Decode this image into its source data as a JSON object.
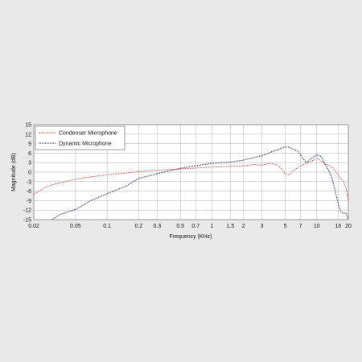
{
  "chart_data": {
    "type": "line",
    "title": "",
    "xlabel": "Frequency (KHz)",
    "ylabel": "Magnitude (dB)",
    "xscale": "log",
    "xlim": [
      0.02,
      20
    ],
    "ylim": [
      -15,
      15
    ],
    "grid": true,
    "legend_position": "top-left",
    "x_ticks": [
      {
        "v": 0.02,
        "label": "0.02"
      },
      {
        "v": 0.05,
        "label": "0.05"
      },
      {
        "v": 0.1,
        "label": "0.1"
      },
      {
        "v": 0.2,
        "label": "0.2"
      },
      {
        "v": 0.3,
        "label": "0.3"
      },
      {
        "v": 0.5,
        "label": "0.5"
      },
      {
        "v": 0.7,
        "label": "0.7"
      },
      {
        "v": 1,
        "label": "1"
      },
      {
        "v": 1.5,
        "label": "1.5"
      },
      {
        "v": 2,
        "label": "2"
      },
      {
        "v": 3,
        "label": "3"
      },
      {
        "v": 5,
        "label": "5"
      },
      {
        "v": 7,
        "label": "7"
      },
      {
        "v": 10,
        "label": "10"
      },
      {
        "v": 16,
        "label": "16"
      },
      {
        "v": 20,
        "label": "20"
      }
    ],
    "y_ticks": [
      15,
      12,
      9,
      6,
      3,
      0,
      -3,
      -6,
      -9,
      -12,
      -15
    ],
    "series": [
      {
        "name": "Condenser Microphone",
        "color": "#d9534f",
        "style": "dashed",
        "points": [
          [
            0.02,
            -7
          ],
          [
            0.025,
            -5
          ],
          [
            0.03,
            -4
          ],
          [
            0.04,
            -3
          ],
          [
            0.05,
            -2.2
          ],
          [
            0.07,
            -1.5
          ],
          [
            0.1,
            -0.8
          ],
          [
            0.15,
            -0.3
          ],
          [
            0.2,
            0.2
          ],
          [
            0.3,
            0.6
          ],
          [
            0.5,
            1.0
          ],
          [
            0.7,
            1.3
          ],
          [
            1.0,
            1.6
          ],
          [
            1.5,
            1.8
          ],
          [
            2.0,
            2.0
          ],
          [
            2.5,
            2.4
          ],
          [
            3.0,
            2.2
          ],
          [
            3.5,
            2.8
          ],
          [
            4.0,
            2.5
          ],
          [
            4.5,
            1.5
          ],
          [
            5.0,
            -0.5
          ],
          [
            5.5,
            -0.8
          ],
          [
            6.0,
            0.5
          ],
          [
            7.0,
            2.0
          ],
          [
            8.0,
            2.8
          ],
          [
            9.0,
            3.5
          ],
          [
            10.0,
            4.5
          ],
          [
            11.0,
            3.5
          ],
          [
            12.0,
            2.5
          ],
          [
            13.0,
            2.2
          ],
          [
            14.0,
            1.5
          ],
          [
            15.0,
            0.5
          ],
          [
            16.0,
            -1.0
          ],
          [
            17.0,
            -2.0
          ],
          [
            18.0,
            -3.0
          ],
          [
            19.0,
            -5.0
          ],
          [
            20.0,
            -9.0
          ]
        ]
      },
      {
        "name": "Dynamic Microphone",
        "color": "#1e2a5a",
        "style": "dotted",
        "points": [
          [
            0.03,
            -15
          ],
          [
            0.035,
            -13.5
          ],
          [
            0.04,
            -12.8
          ],
          [
            0.05,
            -11.8
          ],
          [
            0.07,
            -9
          ],
          [
            0.1,
            -6.8
          ],
          [
            0.15,
            -4.5
          ],
          [
            0.2,
            -2
          ],
          [
            0.3,
            -0.5
          ],
          [
            0.5,
            1.2
          ],
          [
            0.7,
            2.0
          ],
          [
            1.0,
            2.8
          ],
          [
            1.5,
            3.2
          ],
          [
            2.0,
            3.8
          ],
          [
            3.0,
            5.2
          ],
          [
            4.0,
            6.8
          ],
          [
            5.0,
            8.0
          ],
          [
            5.5,
            7.8
          ],
          [
            6.0,
            7.2
          ],
          [
            6.5,
            6.8
          ],
          [
            7.0,
            5.5
          ],
          [
            7.5,
            4.0
          ],
          [
            8.0,
            3.0
          ],
          [
            9.0,
            4.5
          ],
          [
            10.0,
            5.5
          ],
          [
            11.0,
            5.0
          ],
          [
            12.0,
            2.5
          ],
          [
            13.0,
            0.5
          ],
          [
            14.0,
            -2.0
          ],
          [
            15.0,
            -6.0
          ],
          [
            16.0,
            -10.0
          ],
          [
            17.0,
            -12.5
          ],
          [
            18.0,
            -13.0
          ],
          [
            19.0,
            -13.0
          ],
          [
            20.0,
            -15.0
          ]
        ]
      }
    ]
  }
}
